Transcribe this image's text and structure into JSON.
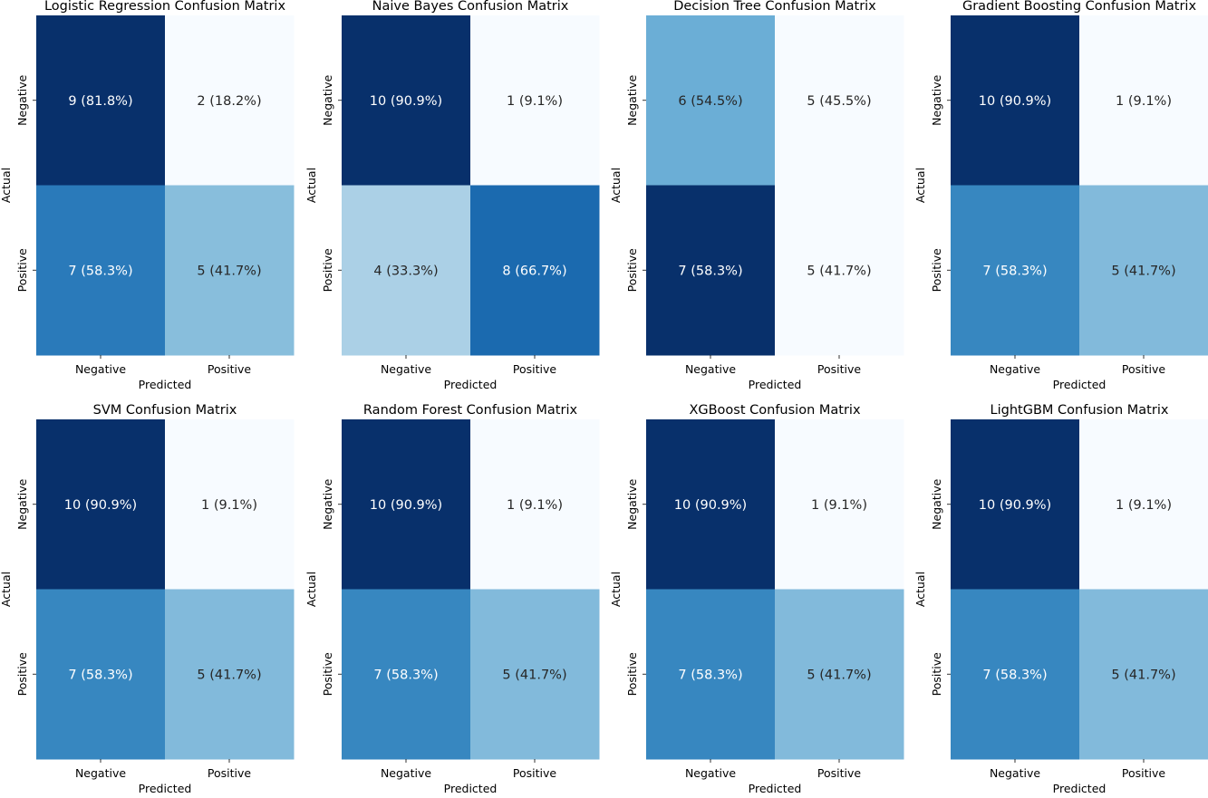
{
  "chart_data": [
    {
      "type": "heatmap",
      "title": "Logistic Regression Confusion Matrix",
      "xlabel": "Predicted",
      "ylabel": "Actual",
      "x_categories": [
        "Negative",
        "Positive"
      ],
      "y_categories": [
        "Negative",
        "Positive"
      ],
      "values": [
        [
          9,
          2
        ],
        [
          7,
          5
        ]
      ],
      "cell_labels": [
        [
          "9 (81.8%)",
          "2 (18.2%)"
        ],
        [
          "7 (58.3%)",
          "5 (41.7%)"
        ]
      ],
      "colormap": "Blues"
    },
    {
      "type": "heatmap",
      "title": "Naive Bayes Confusion Matrix",
      "xlabel": "Predicted",
      "ylabel": "Actual",
      "x_categories": [
        "Negative",
        "Positive"
      ],
      "y_categories": [
        "Negative",
        "Positive"
      ],
      "values": [
        [
          10,
          1
        ],
        [
          4,
          8
        ]
      ],
      "cell_labels": [
        [
          "10 (90.9%)",
          "1 (9.1%)"
        ],
        [
          "4 (33.3%)",
          "8 (66.7%)"
        ]
      ],
      "colormap": "Blues"
    },
    {
      "type": "heatmap",
      "title": "Decision Tree Confusion Matrix",
      "xlabel": "Predicted",
      "ylabel": "Actual",
      "x_categories": [
        "Negative",
        "Positive"
      ],
      "y_categories": [
        "Negative",
        "Positive"
      ],
      "values": [
        [
          6,
          5
        ],
        [
          7,
          5
        ]
      ],
      "cell_labels": [
        [
          "6 (54.5%)",
          "5 (45.5%)"
        ],
        [
          "7 (58.3%)",
          "5 (41.7%)"
        ]
      ],
      "colormap": "Blues"
    },
    {
      "type": "heatmap",
      "title": "Gradient Boosting Confusion Matrix",
      "xlabel": "Predicted",
      "ylabel": "Actual",
      "x_categories": [
        "Negative",
        "Positive"
      ],
      "y_categories": [
        "Negative",
        "Positive"
      ],
      "values": [
        [
          10,
          1
        ],
        [
          7,
          5
        ]
      ],
      "cell_labels": [
        [
          "10 (90.9%)",
          "1 (9.1%)"
        ],
        [
          "7 (58.3%)",
          "5 (41.7%)"
        ]
      ],
      "colormap": "Blues"
    },
    {
      "type": "heatmap",
      "title": "SVM Confusion Matrix",
      "xlabel": "Predicted",
      "ylabel": "Actual",
      "x_categories": [
        "Negative",
        "Positive"
      ],
      "y_categories": [
        "Negative",
        "Positive"
      ],
      "values": [
        [
          10,
          1
        ],
        [
          7,
          5
        ]
      ],
      "cell_labels": [
        [
          "10 (90.9%)",
          "1 (9.1%)"
        ],
        [
          "7 (58.3%)",
          "5 (41.7%)"
        ]
      ],
      "colormap": "Blues"
    },
    {
      "type": "heatmap",
      "title": "Random Forest Confusion Matrix",
      "xlabel": "Predicted",
      "ylabel": "Actual",
      "x_categories": [
        "Negative",
        "Positive"
      ],
      "y_categories": [
        "Negative",
        "Positive"
      ],
      "values": [
        [
          10,
          1
        ],
        [
          7,
          5
        ]
      ],
      "cell_labels": [
        [
          "10 (90.9%)",
          "1 (9.1%)"
        ],
        [
          "7 (58.3%)",
          "5 (41.7%)"
        ]
      ],
      "colormap": "Blues"
    },
    {
      "type": "heatmap",
      "title": "XGBoost Confusion Matrix",
      "xlabel": "Predicted",
      "ylabel": "Actual",
      "x_categories": [
        "Negative",
        "Positive"
      ],
      "y_categories": [
        "Negative",
        "Positive"
      ],
      "values": [
        [
          10,
          1
        ],
        [
          7,
          5
        ]
      ],
      "cell_labels": [
        [
          "10 (90.9%)",
          "1 (9.1%)"
        ],
        [
          "7 (58.3%)",
          "5 (41.7%)"
        ]
      ],
      "colormap": "Blues"
    },
    {
      "type": "heatmap",
      "title": "LightGBM Confusion Matrix",
      "xlabel": "Predicted",
      "ylabel": "Actual",
      "x_categories": [
        "Negative",
        "Positive"
      ],
      "y_categories": [
        "Negative",
        "Positive"
      ],
      "values": [
        [
          10,
          1
        ],
        [
          7,
          5
        ]
      ],
      "cell_labels": [
        [
          "10 (90.9%)",
          "1 (9.1%)"
        ],
        [
          "7 (58.3%)",
          "5 (41.7%)"
        ]
      ],
      "colormap": "Blues"
    }
  ]
}
